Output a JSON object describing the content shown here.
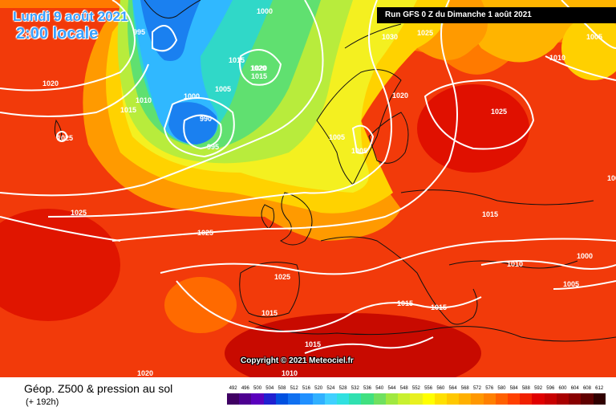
{
  "header": {
    "date_label": "Lundi 9 août 2021",
    "time_label": "2:00 locale",
    "run_label": "Run GFS 0 Z du Dimanche 1 août 2021"
  },
  "map": {
    "copyright": "Copyright © 2021 Meteociel.fr",
    "pressure_labels": [
      {
        "text": "1005"
      },
      {
        "text": "995"
      },
      {
        "text": "1000"
      },
      {
        "text": "1020"
      },
      {
        "text": "1015"
      },
      {
        "text": "1010"
      },
      {
        "text": "1000"
      },
      {
        "text": "990"
      },
      {
        "text": "995"
      },
      {
        "text": "1025"
      },
      {
        "text": "1025"
      },
      {
        "text": "1020"
      },
      {
        "text": "1005"
      },
      {
        "text": "1020"
      },
      {
        "text": "1015"
      },
      {
        "text": "1015"
      },
      {
        "text": "1025"
      },
      {
        "text": "1030"
      },
      {
        "text": "1025"
      },
      {
        "text": "1005"
      },
      {
        "text": "1010"
      },
      {
        "text": "1020"
      },
      {
        "text": "1005"
      },
      {
        "text": "1005"
      },
      {
        "text": "1025"
      },
      {
        "text": "1015"
      },
      {
        "text": "1010"
      },
      {
        "text": "1000"
      },
      {
        "text": "1005"
      },
      {
        "text": "1025"
      },
      {
        "text": "1015"
      },
      {
        "text": "1015"
      },
      {
        "text": "1015"
      },
      {
        "text": "1015"
      },
      {
        "text": "1010"
      },
      {
        "text": "1020"
      },
      {
        "text": "1000"
      }
    ]
  },
  "footer": {
    "field_title": "Géop. Z500 & pression au sol",
    "forecast_hour": "(+ 192h)"
  },
  "legend": {
    "values": [
      "492",
      "496",
      "500",
      "504",
      "508",
      "512",
      "516",
      "520",
      "524",
      "528",
      "532",
      "536",
      "540",
      "544",
      "548",
      "552",
      "556",
      "560",
      "564",
      "568",
      "572",
      "576",
      "580",
      "584",
      "588",
      "592",
      "596",
      "600",
      "604",
      "608",
      "612"
    ],
    "colors": [
      "#3f0063",
      "#4d0090",
      "#5a00bd",
      "#2020d0",
      "#0050e0",
      "#1070f0",
      "#2090ff",
      "#30b0ff",
      "#40d0ff",
      "#30e0e0",
      "#30e0b0",
      "#40e080",
      "#70e060",
      "#a0e840",
      "#c8f030",
      "#e8f020",
      "#ffff00",
      "#ffe000",
      "#ffc800",
      "#ffb000",
      "#ff9800",
      "#ff8000",
      "#ff6000",
      "#ff4000",
      "#f02000",
      "#e00000",
      "#c80000",
      "#a80000",
      "#880000",
      "#600000",
      "#300000"
    ]
  }
}
